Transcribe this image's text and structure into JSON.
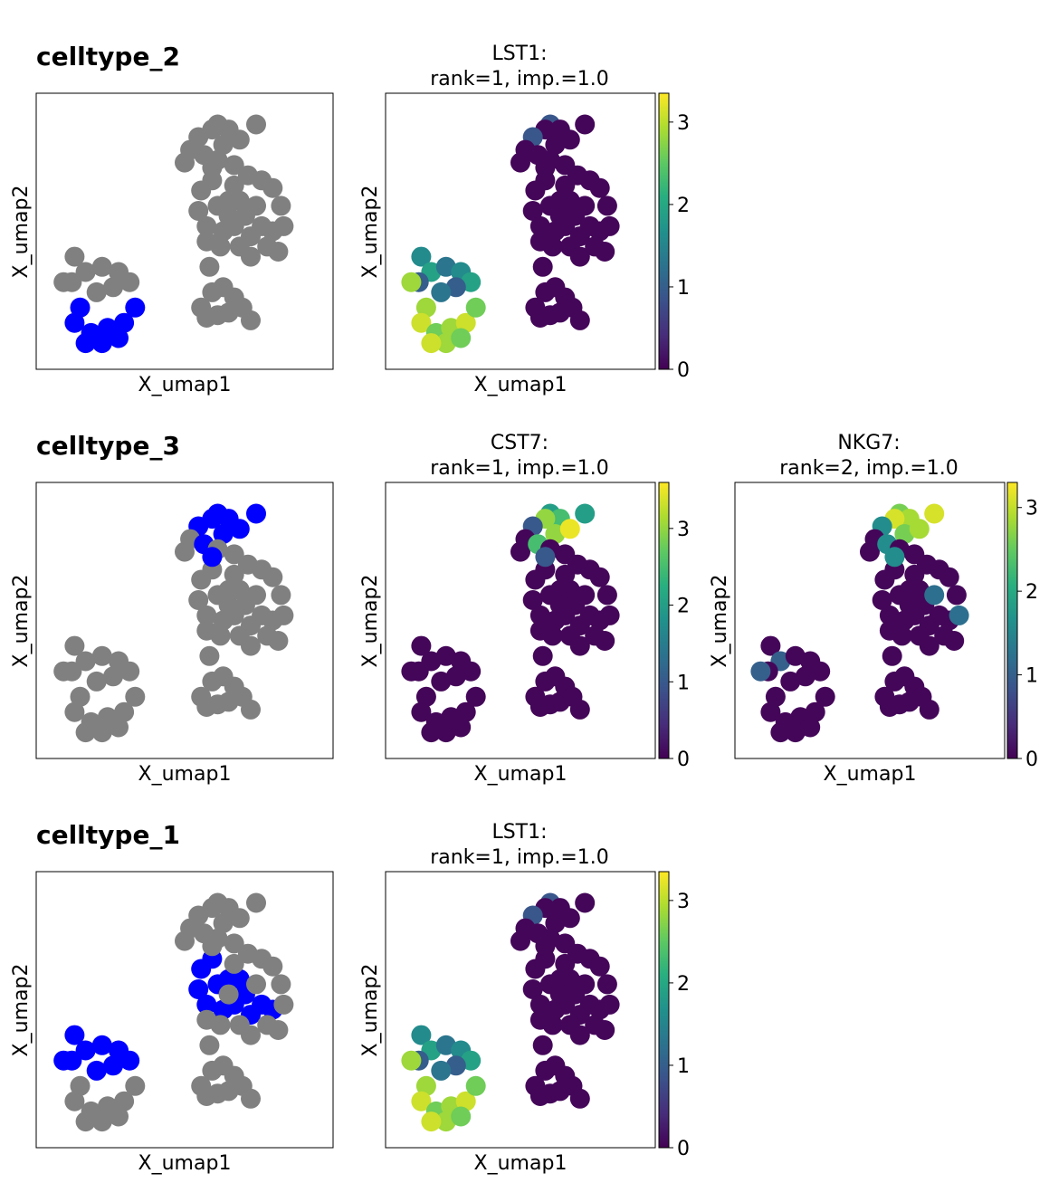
{
  "rows": [
    {
      "group_title": "celltype_2",
      "panels": [
        {
          "title_line1": "LST1:",
          "title_line2": "rank=1, imp.=1.0"
        }
      ]
    },
    {
      "group_title": "celltype_3",
      "panels": [
        {
          "title_line1": "CST7:",
          "title_line2": "rank=1, imp.=1.0"
        },
        {
          "title_line1": "NKG7:",
          "title_line2": "rank=2, imp.=1.0"
        }
      ]
    },
    {
      "group_title": "celltype_1",
      "panels": [
        {
          "title_line1": "LST1:",
          "title_line2": "rank=1, imp.=1.0"
        }
      ]
    }
  ],
  "axes": {
    "xlabel": "X_umap1",
    "ylabel": "X_umap2"
  },
  "colors": {
    "highlight": "#0000ff",
    "background_cells": "#808080",
    "colormap": "viridis"
  },
  "chart_data": [
    {
      "type": "scatter",
      "title": "celltype_2",
      "xlabel": "X_umap1",
      "ylabel": "X_umap2",
      "description": "cells of celltype_2 highlighted in blue, others grey"
    },
    {
      "type": "scatter",
      "title": "LST1: rank=1, imp.=1.0",
      "xlabel": "X_umap1",
      "ylabel": "X_umap2",
      "colorbar": {
        "ticks": [
          0,
          1,
          2,
          3
        ],
        "range": [
          0,
          3.35
        ]
      }
    },
    {
      "type": "scatter",
      "title": "celltype_3",
      "xlabel": "X_umap1",
      "ylabel": "X_umap2"
    },
    {
      "type": "scatter",
      "title": "CST7: rank=1, imp.=1.0",
      "xlabel": "X_umap1",
      "ylabel": "X_umap2",
      "colorbar": {
        "ticks": [
          0,
          1,
          2,
          3
        ],
        "range": [
          0,
          3.6
        ]
      }
    },
    {
      "type": "scatter",
      "title": "NKG7: rank=2, imp.=1.0",
      "xlabel": "X_umap1",
      "ylabel": "X_umap2",
      "colorbar": {
        "ticks": [
          0,
          1,
          2,
          3
        ],
        "range": [
          0,
          3.3
        ]
      }
    },
    {
      "type": "scatter",
      "title": "celltype_1",
      "xlabel": "X_umap1",
      "ylabel": "X_umap2"
    },
    {
      "type": "scatter",
      "title": "LST1: rank=1, imp.=1.0",
      "xlabel": "X_umap1",
      "ylabel": "X_umap2",
      "colorbar": {
        "ticks": [
          0,
          1,
          2,
          3
        ],
        "range": [
          0,
          3.35
        ]
      }
    }
  ],
  "colorbars": {
    "r0p1": {
      "ticks": [
        "0",
        "1",
        "2",
        "3"
      ],
      "values": [
        0,
        1,
        2,
        3
      ],
      "max": 3.35
    },
    "r1p1": {
      "ticks": [
        "0",
        "1",
        "2",
        "3"
      ],
      "values": [
        0,
        1,
        2,
        3
      ],
      "max": 3.6
    },
    "r1p2": {
      "ticks": [
        "0",
        "1",
        "2",
        "3"
      ],
      "values": [
        0,
        1,
        2,
        3
      ],
      "max": 3.3
    },
    "r2p1": {
      "ticks": [
        "0",
        "1",
        "2",
        "3"
      ],
      "values": [
        0,
        1,
        2,
        3
      ],
      "max": 3.35
    }
  }
}
